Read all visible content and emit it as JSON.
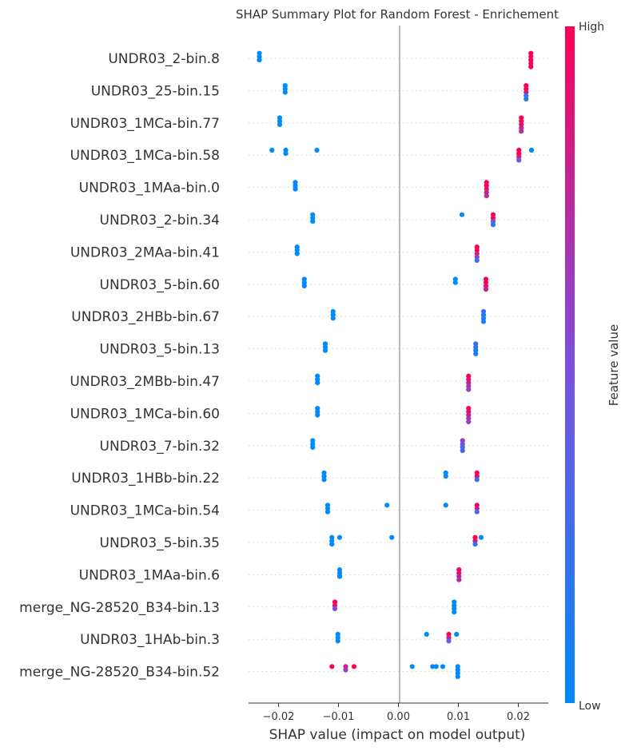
{
  "chart_data": {
    "type": "scatter",
    "title": "SHAP Summary Plot for Random Forest - Enrichement",
    "xlabel": "SHAP value (impact on model output)",
    "xlim": [
      -0.025,
      0.025
    ],
    "xticks": [
      -0.02,
      -0.01,
      0.0,
      0.01,
      0.02
    ],
    "xtick_labels": [
      "−0.02",
      "−0.01",
      "0.00",
      "0.01",
      "0.02"
    ],
    "colorbar": {
      "label": "Feature value",
      "high": "High",
      "low": "Low",
      "low_color": "#008afb",
      "high_color": "#ff0052"
    },
    "features": [
      {
        "name": "UNDR03_2-bin.8",
        "points": [
          [
            -0.0232,
            0
          ],
          [
            -0.0232,
            0
          ],
          [
            -0.0232,
            0
          ],
          [
            0.0221,
            1
          ],
          [
            0.0221,
            1
          ],
          [
            0.0221,
            1
          ],
          [
            0.0221,
            1
          ],
          [
            0.0221,
            1
          ]
        ]
      },
      {
        "name": "UNDR03_25-bin.15",
        "points": [
          [
            -0.0189,
            0
          ],
          [
            -0.0189,
            0
          ],
          [
            -0.0189,
            0
          ],
          [
            0.0213,
            1
          ],
          [
            0.0213,
            1
          ],
          [
            0.0213,
            0.9
          ],
          [
            0.0213,
            0.2
          ],
          [
            0.0213,
            0.2
          ]
        ]
      },
      {
        "name": "UNDR03_1MCa-bin.77",
        "points": [
          [
            -0.0198,
            0
          ],
          [
            -0.0198,
            0
          ],
          [
            -0.0198,
            0
          ],
          [
            0.0205,
            1
          ],
          [
            0.0205,
            1
          ],
          [
            0.0205,
            0.9
          ],
          [
            0.0205,
            0.8
          ],
          [
            0.0205,
            0.7
          ]
        ]
      },
      {
        "name": "UNDR03_1MCa-bin.58",
        "points": [
          [
            -0.0211,
            0
          ],
          [
            -0.0188,
            0
          ],
          [
            -0.0188,
            0
          ],
          [
            -0.0136,
            0
          ],
          [
            0.0201,
            1
          ],
          [
            0.0201,
            1
          ],
          [
            0.0201,
            0.9
          ],
          [
            0.0201,
            0.4
          ],
          [
            0.0222,
            0
          ]
        ]
      },
      {
        "name": "UNDR03_1MAa-bin.0",
        "points": [
          [
            -0.0172,
            0
          ],
          [
            -0.0172,
            0
          ],
          [
            -0.0172,
            0
          ],
          [
            0.0147,
            1
          ],
          [
            0.0147,
            1
          ],
          [
            0.0147,
            0.9
          ],
          [
            0.0147,
            0.8
          ],
          [
            0.0147,
            0.7
          ]
        ]
      },
      {
        "name": "UNDR03_2-bin.34",
        "points": [
          [
            -0.0143,
            0
          ],
          [
            -0.0143,
            0
          ],
          [
            -0.0143,
            0
          ],
          [
            0.0106,
            0
          ],
          [
            0.0158,
            1
          ],
          [
            0.0158,
            1
          ],
          [
            0.0158,
            0.4
          ],
          [
            0.0158,
            0.2
          ]
        ]
      },
      {
        "name": "UNDR03_2MAa-bin.41",
        "points": [
          [
            -0.0169,
            0
          ],
          [
            -0.0169,
            0
          ],
          [
            -0.0169,
            0
          ],
          [
            0.0131,
            1
          ],
          [
            0.0131,
            1
          ],
          [
            0.0131,
            0.8
          ],
          [
            0.0131,
            0.6
          ],
          [
            0.0131,
            0.2
          ]
        ]
      },
      {
        "name": "UNDR03_5-bin.60",
        "points": [
          [
            -0.0157,
            0
          ],
          [
            -0.0157,
            0
          ],
          [
            -0.0157,
            0
          ],
          [
            0.0095,
            0
          ],
          [
            0.0095,
            0
          ],
          [
            0.0146,
            1
          ],
          [
            0.0146,
            1
          ],
          [
            0.0146,
            0.9
          ],
          [
            0.0146,
            0.8
          ]
        ]
      },
      {
        "name": "UNDR03_2HBb-bin.67",
        "points": [
          [
            -0.0109,
            0
          ],
          [
            -0.0109,
            0
          ],
          [
            -0.0109,
            0
          ],
          [
            0.0142,
            0.2
          ],
          [
            0.0142,
            0.2
          ],
          [
            0.0142,
            0.1
          ],
          [
            0.0142,
            0.1
          ]
        ]
      },
      {
        "name": "UNDR03_5-bin.13",
        "points": [
          [
            -0.0122,
            0
          ],
          [
            -0.0122,
            0
          ],
          [
            -0.0122,
            0
          ],
          [
            0.0129,
            0.2
          ],
          [
            0.0129,
            0.2
          ],
          [
            0.0129,
            0.1
          ],
          [
            0.0129,
            0.1
          ]
        ]
      },
      {
        "name": "UNDR03_2MBb-bin.47",
        "points": [
          [
            -0.0135,
            0
          ],
          [
            -0.0135,
            0
          ],
          [
            -0.0135,
            0
          ],
          [
            0.0117,
            1
          ],
          [
            0.0117,
            0.9
          ],
          [
            0.0117,
            0.8
          ],
          [
            0.0117,
            0.7
          ],
          [
            0.0117,
            0.6
          ]
        ]
      },
      {
        "name": "UNDR03_1MCa-bin.60",
        "points": [
          [
            -0.0135,
            0
          ],
          [
            -0.0135,
            0
          ],
          [
            -0.0135,
            0
          ],
          [
            0.0117,
            1
          ],
          [
            0.0117,
            0.9
          ],
          [
            0.0117,
            0.8
          ],
          [
            0.0117,
            0.7
          ],
          [
            0.0117,
            0.6
          ]
        ]
      },
      {
        "name": "UNDR03_7-bin.32",
        "points": [
          [
            -0.0143,
            0
          ],
          [
            -0.0143,
            0
          ],
          [
            -0.0143,
            0
          ],
          [
            0.0107,
            0.6
          ],
          [
            0.0107,
            0.5
          ],
          [
            0.0107,
            0.3
          ],
          [
            0.0107,
            0.3
          ]
        ]
      },
      {
        "name": "UNDR03_1HBb-bin.22",
        "points": [
          [
            -0.0124,
            0
          ],
          [
            -0.0124,
            0
          ],
          [
            -0.0124,
            0
          ],
          [
            0.0079,
            0
          ],
          [
            0.0079,
            0
          ],
          [
            0.0131,
            1
          ],
          [
            0.0131,
            0.9
          ],
          [
            0.0131,
            0.3
          ]
        ]
      },
      {
        "name": "UNDR03_1MCa-bin.54",
        "points": [
          [
            -0.0118,
            0
          ],
          [
            -0.0118,
            0
          ],
          [
            -0.0118,
            0
          ],
          [
            -0.0019,
            0
          ],
          [
            0.0079,
            0
          ],
          [
            0.0131,
            1
          ],
          [
            0.0131,
            0.8
          ],
          [
            0.0131,
            0.3
          ]
        ]
      },
      {
        "name": "UNDR03_5-bin.35",
        "points": [
          [
            -0.0111,
            0
          ],
          [
            -0.0111,
            0
          ],
          [
            -0.0111,
            0
          ],
          [
            -0.0098,
            0
          ],
          [
            -0.0011,
            0
          ],
          [
            0.0128,
            1
          ],
          [
            0.0128,
            0.9
          ],
          [
            0.0128,
            0.2
          ],
          [
            0.0138,
            0
          ]
        ]
      },
      {
        "name": "UNDR03_1MAa-bin.6",
        "points": [
          [
            -0.0098,
            0
          ],
          [
            -0.0098,
            0
          ],
          [
            -0.0098,
            0
          ],
          [
            0.0101,
            1
          ],
          [
            0.0101,
            0.9
          ],
          [
            0.0101,
            0.8
          ],
          [
            0.0101,
            0.7
          ]
        ]
      },
      {
        "name": "merge_NG-28520_B34-bin.13",
        "points": [
          [
            -0.0106,
            1
          ],
          [
            -0.0106,
            0.9
          ],
          [
            -0.0106,
            0.5
          ],
          [
            0.0093,
            0
          ],
          [
            0.0093,
            0
          ],
          [
            0.0093,
            0
          ],
          [
            0.0093,
            0
          ]
        ]
      },
      {
        "name": "UNDR03_1HAb-bin.3",
        "points": [
          [
            -0.0101,
            0
          ],
          [
            -0.0101,
            0
          ],
          [
            -0.0101,
            0
          ],
          [
            0.0047,
            0
          ],
          [
            0.0084,
            1
          ],
          [
            0.0084,
            0.8
          ],
          [
            0.0084,
            0.4
          ],
          [
            0.0097,
            0
          ]
        ]
      },
      {
        "name": "merge_NG-28520_B34-bin.52",
        "points": [
          [
            -0.0111,
            1
          ],
          [
            -0.0088,
            0.8
          ],
          [
            -0.0088,
            0.6
          ],
          [
            -0.0074,
            1
          ],
          [
            0.0023,
            0
          ],
          [
            0.0057,
            0
          ],
          [
            0.0063,
            0
          ],
          [
            0.0074,
            0
          ],
          [
            0.0099,
            0
          ],
          [
            0.0099,
            0
          ],
          [
            0.0099,
            0
          ],
          [
            0.0099,
            0
          ]
        ]
      }
    ]
  }
}
